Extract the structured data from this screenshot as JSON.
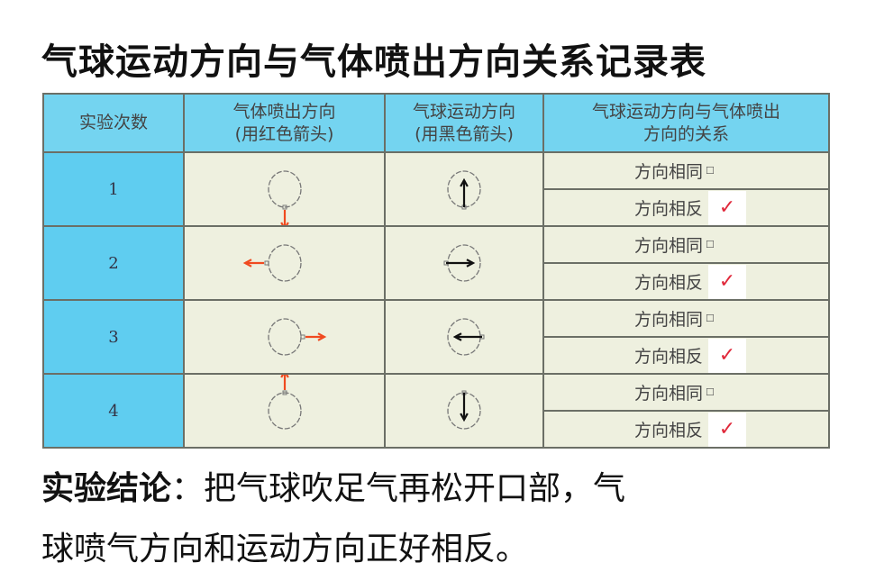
{
  "title": "气球运动方向与气体喷出方向关系记录表",
  "table": {
    "headers": [
      "实验次数",
      "气体喷出方向\n(用红色箭头)",
      "气球运动方向\n(用黑色箭头)",
      "气球运动方向与气体喷出\n方向的关系"
    ],
    "header_lines": [
      [
        "实验次数"
      ],
      [
        "气体喷出方向",
        "(用红色箭头)"
      ],
      [
        "气球运动方向",
        "(用黑色箭头)"
      ],
      [
        "气球运动方向与气体喷出",
        "方向的关系"
      ]
    ],
    "rows": [
      {
        "num": "1",
        "gas_dir": "down",
        "motion_dir": "up",
        "same": "方向相同",
        "opposite": "方向相反",
        "checked": "opposite"
      },
      {
        "num": "2",
        "gas_dir": "left",
        "motion_dir": "right",
        "same": "方向相同",
        "opposite": "方向相反",
        "checked": "opposite"
      },
      {
        "num": "3",
        "gas_dir": "right",
        "motion_dir": "left",
        "same": "方向相同",
        "opposite": "方向相反",
        "checked": "opposite"
      },
      {
        "num": "4",
        "gas_dir": "up",
        "motion_dir": "down",
        "same": "方向相同",
        "opposite": "方向相反",
        "checked": "opposite"
      }
    ],
    "checkbox_symbol": "☐",
    "check_mark": "✓"
  },
  "conclusion": {
    "label": "实验结论",
    "colon": "：",
    "line1": "把气球吹足气再松开口部，气",
    "line2": "球喷气方向和运动方向正好相反。"
  },
  "colors": {
    "header_bg": "#74d4f0",
    "num_col_bg": "#5fcdf0",
    "cell_bg": "#eef0df",
    "gas_arrow": "#f04a20",
    "motion_arrow": "#111111",
    "check": "#e0283a"
  }
}
